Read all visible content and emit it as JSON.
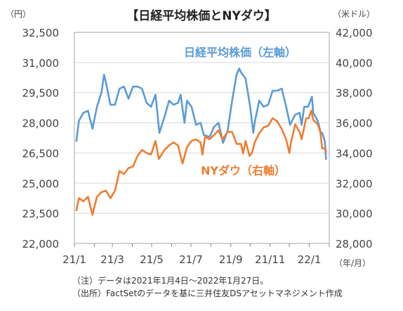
{
  "chart_data": {
    "type": "line",
    "title": "【日経平均株価とNYダウ】",
    "left_unit": "（円）",
    "right_unit": "（米ドル）",
    "x_unit": "（年/月）",
    "x_ticks": [
      "21/1",
      "21/3",
      "21/5",
      "21/7",
      "21/9",
      "21/11",
      "22/1"
    ],
    "left_axis": {
      "min": 22000,
      "max": 32500,
      "ticks": [
        22000,
        23500,
        25000,
        26500,
        28000,
        29500,
        31000,
        32500
      ],
      "tick_labels": [
        "22,000",
        "23,500",
        "25,000",
        "26,500",
        "28,000",
        "29,500",
        "31,000",
        "32,500"
      ]
    },
    "right_axis": {
      "min": 28000,
      "max": 42000,
      "ticks": [
        28000,
        30000,
        32000,
        34000,
        36000,
        38000,
        40000,
        42000
      ],
      "tick_labels": [
        "28,000",
        "30,000",
        "32,000",
        "34,000",
        "36,000",
        "38,000",
        "40,000",
        "42,000"
      ]
    },
    "x_range": [
      "2021-01-04",
      "2022-01-27"
    ],
    "grid": true,
    "series": [
      {
        "name": "日経平均株価（左軸）",
        "axis": "left",
        "color": "#5b9bd5",
        "points": [
          [
            "2021-01-04",
            27100
          ],
          [
            "2021-01-08",
            28100
          ],
          [
            "2021-01-15",
            28500
          ],
          [
            "2021-01-22",
            28600
          ],
          [
            "2021-01-29",
            27700
          ],
          [
            "2021-02-05",
            28800
          ],
          [
            "2021-02-12",
            29500
          ],
          [
            "2021-02-16",
            30400
          ],
          [
            "2021-02-19",
            30000
          ],
          [
            "2021-02-26",
            28900
          ],
          [
            "2021-03-05",
            28900
          ],
          [
            "2021-03-12",
            29700
          ],
          [
            "2021-03-19",
            29800
          ],
          [
            "2021-03-26",
            29200
          ],
          [
            "2021-04-02",
            29800
          ],
          [
            "2021-04-09",
            29800
          ],
          [
            "2021-04-16",
            29700
          ],
          [
            "2021-04-23",
            29000
          ],
          [
            "2021-04-30",
            28800
          ],
          [
            "2021-05-07",
            29400
          ],
          [
            "2021-05-13",
            27500
          ],
          [
            "2021-05-21",
            28300
          ],
          [
            "2021-05-28",
            29100
          ],
          [
            "2021-06-04",
            28900
          ],
          [
            "2021-06-11",
            29000
          ],
          [
            "2021-06-15",
            29400
          ],
          [
            "2021-06-21",
            28000
          ],
          [
            "2021-06-25",
            29100
          ],
          [
            "2021-07-02",
            28800
          ],
          [
            "2021-07-09",
            27900
          ],
          [
            "2021-07-16",
            28000
          ],
          [
            "2021-07-21",
            27400
          ],
          [
            "2021-07-30",
            27300
          ],
          [
            "2021-08-06",
            27800
          ],
          [
            "2021-08-13",
            28000
          ],
          [
            "2021-08-20",
            27000
          ],
          [
            "2021-08-27",
            27600
          ],
          [
            "2021-09-03",
            29100
          ],
          [
            "2021-09-10",
            30400
          ],
          [
            "2021-09-14",
            30700
          ],
          [
            "2021-09-17",
            30500
          ],
          [
            "2021-09-24",
            30200
          ],
          [
            "2021-10-01",
            28800
          ],
          [
            "2021-10-06",
            27500
          ],
          [
            "2021-10-08",
            28000
          ],
          [
            "2021-10-15",
            29100
          ],
          [
            "2021-10-22",
            28800
          ],
          [
            "2021-10-29",
            28900
          ],
          [
            "2021-11-05",
            29600
          ],
          [
            "2021-11-12",
            29600
          ],
          [
            "2021-11-19",
            29700
          ],
          [
            "2021-11-26",
            28800
          ],
          [
            "2021-12-02",
            27900
          ],
          [
            "2021-12-10",
            28400
          ],
          [
            "2021-12-17",
            28500
          ],
          [
            "2021-12-20",
            27900
          ],
          [
            "2021-12-24",
            28800
          ],
          [
            "2021-12-30",
            28800
          ],
          [
            "2022-01-05",
            29300
          ],
          [
            "2022-01-07",
            28500
          ],
          [
            "2022-01-14",
            28100
          ],
          [
            "2022-01-19",
            27500
          ],
          [
            "2022-01-21",
            27500
          ],
          [
            "2022-01-25",
            27100
          ],
          [
            "2022-01-27",
            26200
          ]
        ]
      },
      {
        "name": "NYダウ（右軸）",
        "axis": "right",
        "color": "#ed7d31",
        "points": [
          [
            "2021-01-04",
            30200
          ],
          [
            "2021-01-08",
            31000
          ],
          [
            "2021-01-15",
            30800
          ],
          [
            "2021-01-22",
            31100
          ],
          [
            "2021-01-29",
            29900
          ],
          [
            "2021-02-05",
            31100
          ],
          [
            "2021-02-12",
            31400
          ],
          [
            "2021-02-19",
            31500
          ],
          [
            "2021-02-26",
            31000
          ],
          [
            "2021-03-05",
            31500
          ],
          [
            "2021-03-12",
            32800
          ],
          [
            "2021-03-19",
            32600
          ],
          [
            "2021-03-26",
            33000
          ],
          [
            "2021-04-02",
            33100
          ],
          [
            "2021-04-09",
            33800
          ],
          [
            "2021-04-16",
            34200
          ],
          [
            "2021-04-23",
            34000
          ],
          [
            "2021-04-30",
            33900
          ],
          [
            "2021-05-07",
            34800
          ],
          [
            "2021-05-12",
            33600
          ],
          [
            "2021-05-21",
            34200
          ],
          [
            "2021-05-28",
            34500
          ],
          [
            "2021-06-04",
            34700
          ],
          [
            "2021-06-11",
            34500
          ],
          [
            "2021-06-18",
            33300
          ],
          [
            "2021-06-25",
            34400
          ],
          [
            "2021-07-02",
            34800
          ],
          [
            "2021-07-09",
            34900
          ],
          [
            "2021-07-16",
            34700
          ],
          [
            "2021-07-19",
            33900
          ],
          [
            "2021-07-23",
            35100
          ],
          [
            "2021-07-30",
            34900
          ],
          [
            "2021-08-06",
            35200
          ],
          [
            "2021-08-13",
            35500
          ],
          [
            "2021-08-19",
            34900
          ],
          [
            "2021-08-27",
            35400
          ],
          [
            "2021-09-03",
            35400
          ],
          [
            "2021-09-10",
            34600
          ],
          [
            "2021-09-17",
            34600
          ],
          [
            "2021-09-20",
            33970
          ],
          [
            "2021-09-24",
            34800
          ],
          [
            "2021-09-30",
            33800
          ],
          [
            "2021-10-04",
            34000
          ],
          [
            "2021-10-08",
            34700
          ],
          [
            "2021-10-15",
            35300
          ],
          [
            "2021-10-22",
            35700
          ],
          [
            "2021-10-29",
            35800
          ],
          [
            "2021-11-05",
            36300
          ],
          [
            "2021-11-12",
            36100
          ],
          [
            "2021-11-19",
            35600
          ],
          [
            "2021-11-26",
            34900
          ],
          [
            "2021-12-01",
            34000
          ],
          [
            "2021-12-03",
            34600
          ],
          [
            "2021-12-10",
            35900
          ],
          [
            "2021-12-17",
            35400
          ],
          [
            "2021-12-20",
            34900
          ],
          [
            "2021-12-27",
            36300
          ],
          [
            "2021-12-31",
            36300
          ],
          [
            "2022-01-04",
            36800
          ],
          [
            "2022-01-07",
            36200
          ],
          [
            "2022-01-14",
            35900
          ],
          [
            "2022-01-18",
            35400
          ],
          [
            "2022-01-21",
            34300
          ],
          [
            "2022-01-25",
            34300
          ],
          [
            "2022-01-27",
            34100
          ]
        ]
      }
    ]
  },
  "notes": [
    "（注）データは2021年1月4日～2022年1月27日。",
    "（出所）FactSetのデータを基に三井住友DSアセットマネジメント作成"
  ]
}
